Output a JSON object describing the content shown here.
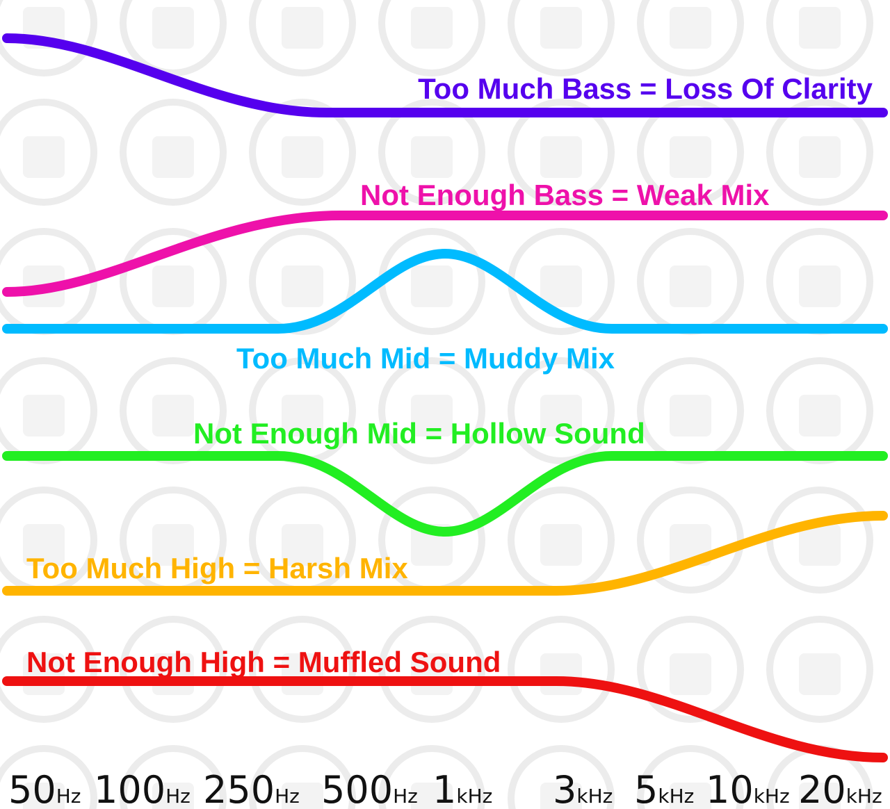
{
  "curves": [
    {
      "label": "Too Much Bass = Loss Of Clarity"
    },
    {
      "label": "Not Enough Bass = Weak Mix"
    },
    {
      "label": "Too Much Mid = Muddy Mix"
    },
    {
      "label": "Not Enough Mid = Hollow Sound"
    },
    {
      "label": "Too Much High = Harsh Mix"
    },
    {
      "label": "Not Enough High = Muffled Sound"
    }
  ],
  "frequency_labels": [
    {
      "number": "50",
      "unit": "Hz"
    },
    {
      "number": "100",
      "unit": "Hz"
    },
    {
      "number": "250",
      "unit": "Hz"
    },
    {
      "number": "500",
      "unit": "Hz"
    },
    {
      "number": "1",
      "unit": "kHz"
    },
    {
      "number": "3",
      "unit": "kHz"
    },
    {
      "number": "5",
      "unit": "kHz"
    },
    {
      "number": "10",
      "unit": "kHz"
    },
    {
      "number": "20",
      "unit": "kHz"
    }
  ]
}
